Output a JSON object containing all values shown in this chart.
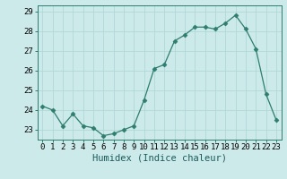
{
  "x": [
    0,
    1,
    2,
    3,
    4,
    5,
    6,
    7,
    8,
    9,
    10,
    11,
    12,
    13,
    14,
    15,
    16,
    17,
    18,
    19,
    20,
    21,
    22,
    23
  ],
  "y": [
    24.2,
    24.0,
    23.2,
    23.8,
    23.2,
    23.1,
    22.7,
    22.8,
    23.0,
    23.2,
    24.5,
    26.1,
    26.3,
    27.5,
    27.8,
    28.2,
    28.2,
    28.1,
    28.4,
    28.8,
    28.1,
    27.1,
    24.8,
    23.5
  ],
  "line_color": "#2e7d6e",
  "marker": "D",
  "marker_size": 2.5,
  "bg_color": "#cdeaea",
  "grid_color": "#b0d8d8",
  "xlabel": "Humidex (Indice chaleur)",
  "xlabel_fontsize": 7.5,
  "ylabel_ticks": [
    23,
    24,
    25,
    26,
    27,
    28,
    29
  ],
  "ylim": [
    22.5,
    29.3
  ],
  "xlim": [
    -0.5,
    23.5
  ],
  "tick_fontsize": 6.5,
  "title": ""
}
